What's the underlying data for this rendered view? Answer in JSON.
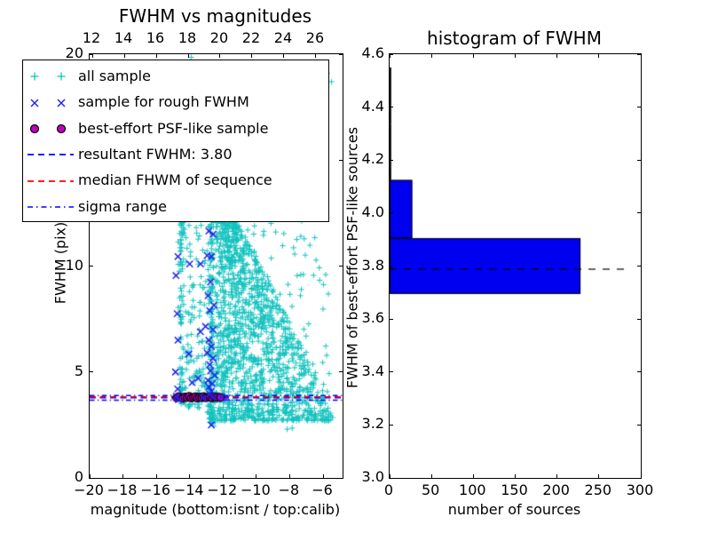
{
  "colors": {
    "cyan_marker": "#12C2BE",
    "blue_marker": "#2222EE",
    "blue_line": "#0000FF",
    "red_line": "#FF0000",
    "magenta_marker": "#BF00BF",
    "bar_fill": "#0000F0",
    "black": "#000000",
    "background": "#FFFFFF"
  },
  "legend": {
    "entries": [
      {
        "label": "all sample",
        "symbol": "plus-plus",
        "color": "#12C2BE"
      },
      {
        "label": "sample for rough FWHM",
        "symbol": "x-x",
        "color": "#2222EE"
      },
      {
        "label": "best-effort PSF-like sample",
        "symbol": "circle-circle",
        "color": "#BF00BF"
      },
      {
        "label": "resultant FWHM: 3.80",
        "symbol": "dashed-line",
        "color": "#0000FF"
      },
      {
        "label": "median FHWM of sequence",
        "symbol": "dashed-line",
        "color": "#FF0000"
      },
      {
        "label": "sigma range",
        "symbol": "dashdot-line",
        "color": "#0000FF"
      }
    ]
  },
  "chart_data": [
    {
      "id": "fwhm_vs_magnitudes",
      "type": "scatter",
      "title": "FWHM vs magnitudes",
      "xlabel": "magnitude (bottom:isnt / top:calib)",
      "ylabel": "FWHM (pix)",
      "xlim_bottom": [
        -20,
        -4.83
      ],
      "xlim_top": [
        11.83,
        27.67
      ],
      "ylim": [
        0,
        20
      ],
      "xticks_bottom": {
        "values": [
          -20,
          -18,
          -16,
          -14,
          -12,
          -10,
          -8,
          -6
        ],
        "labels": [
          "−20",
          "−18",
          "−16",
          "−14",
          "−12",
          "−10",
          "−8",
          "−6"
        ]
      },
      "xticks_top": {
        "values": [
          12,
          14,
          16,
          18,
          20,
          22,
          24,
          26
        ],
        "labels": [
          "12",
          "14",
          "16",
          "18",
          "20",
          "22",
          "24",
          "26"
        ]
      },
      "yticks": {
        "values": [
          0,
          5,
          10,
          15,
          20
        ],
        "labels": [
          "0",
          "5",
          "10",
          "15",
          "20"
        ]
      },
      "series": [
        {
          "name": "all sample",
          "marker": "+",
          "color": "#12C2BE",
          "clusters": [
            {
              "kind": "stripe",
              "x_center": -14.5,
              "x_spread": 0.16,
              "y_min": 3.5,
              "y_max": 12.4,
              "y_bias": 1.2,
              "count": 90
            },
            {
              "kind": "stripe",
              "x_center": -12.7,
              "x_spread": 0.2,
              "y_min": 2.6,
              "y_max": 13.2,
              "y_bias": 1.25,
              "count": 180
            },
            {
              "kind": "uniform",
              "x_min": -14.35,
              "x_max": -12.95,
              "y_min": 3.3,
              "y_max": 12.0,
              "y_bias": 1.5,
              "count": 110
            },
            {
              "kind": "wedge",
              "x_left": -12.45,
              "x_span_max": 7.1,
              "y_min": 2.7,
              "y_max": 13.3,
              "y_bias": 1.5,
              "top_falloff": 0.8,
              "count": 1400
            },
            {
              "kind": "uniform",
              "x_min": -12.1,
              "x_max": -5.6,
              "y_min": 4.0,
              "y_max": 12.5,
              "y_bias": 1.0,
              "count": 130
            }
          ],
          "extra_points": [
            [
              -13.9,
              19.85
            ],
            [
              -14.4,
              19.2
            ],
            [
              -9.9,
              19.35
            ],
            [
              -10.15,
              19.05
            ],
            [
              -5.75,
              19.1
            ],
            [
              -5.5,
              18.7
            ],
            [
              -5.95,
              18.45
            ],
            [
              -12.55,
              2.45
            ],
            [
              -8.15,
              2.3
            ],
            [
              -7.85,
              2.35
            ],
            [
              -6.55,
              2.9
            ],
            [
              -9.6,
              2.75
            ]
          ]
        },
        {
          "name": "sample for rough FWHM",
          "marker": "x",
          "color": "#2222EE",
          "points": [
            [
              -14.7,
              10.45
            ],
            [
              -14.82,
              9.55
            ],
            [
              -14.75,
              7.75
            ],
            [
              -14.7,
              6.5
            ],
            [
              -14.85,
              5.0
            ],
            [
              -14.72,
              4.2
            ],
            [
              -14.8,
              3.85
            ],
            [
              -14.68,
              3.7
            ],
            [
              -14.0,
              10.1
            ],
            [
              -13.35,
              10.1
            ],
            [
              -14.05,
              5.85
            ],
            [
              -13.85,
              4.5
            ],
            [
              -13.35,
              6.9
            ],
            [
              -13.5,
              4.7
            ],
            [
              -13.2,
              3.78
            ],
            [
              -12.85,
              11.65
            ],
            [
              -12.6,
              11.5
            ],
            [
              -12.95,
              10.5
            ],
            [
              -12.7,
              10.45
            ],
            [
              -12.75,
              9.25
            ],
            [
              -12.9,
              8.6
            ],
            [
              -12.55,
              8.15
            ],
            [
              -12.8,
              7.9
            ],
            [
              -13.05,
              7.15
            ],
            [
              -12.6,
              7.0
            ],
            [
              -12.85,
              6.5
            ],
            [
              -12.7,
              6.2
            ],
            [
              -12.95,
              5.9
            ],
            [
              -12.6,
              5.65
            ],
            [
              -12.8,
              5.35
            ],
            [
              -12.75,
              5.05
            ],
            [
              -12.5,
              4.85
            ],
            [
              -12.9,
              4.6
            ],
            [
              -12.65,
              4.45
            ],
            [
              -12.85,
              4.3
            ],
            [
              -12.7,
              4.1
            ],
            [
              -12.8,
              3.95
            ],
            [
              -12.6,
              3.8
            ],
            [
              -12.7,
              2.5
            ],
            [
              -12.1,
              3.82
            ],
            [
              -11.75,
              3.78
            ]
          ]
        },
        {
          "name": "best-effort PSF-like sample",
          "marker": "o",
          "color": "#BF00BF",
          "points": [
            [
              -14.78,
              3.78
            ],
            [
              -14.655,
              3.84
            ],
            [
              -14.53,
              3.8
            ],
            [
              -14.405,
              3.76
            ],
            [
              -14.28,
              3.82
            ],
            [
              -14.155,
              3.79
            ],
            [
              -14.03,
              3.85
            ],
            [
              -13.905,
              3.77
            ],
            [
              -13.78,
              3.8
            ],
            [
              -13.655,
              3.83
            ],
            [
              -13.53,
              3.76
            ],
            [
              -13.405,
              3.81
            ],
            [
              -13.28,
              3.79
            ],
            [
              -13.155,
              3.84
            ],
            [
              -13.03,
              3.78
            ],
            [
              -12.905,
              3.8
            ],
            [
              -12.78,
              3.82
            ],
            [
              -12.655,
              3.77
            ],
            [
              -12.53,
              3.83
            ],
            [
              -12.405,
              3.79
            ],
            [
              -12.28,
              3.81
            ],
            [
              -12.15,
              3.8
            ]
          ]
        }
      ],
      "lines": [
        {
          "name": "resultant FWHM: 3.80",
          "y": 3.8,
          "style": "dashed",
          "color": "#0000FF"
        },
        {
          "name": "median FHWM of sequence",
          "y": 3.85,
          "style": "dashed",
          "color": "#FF0000"
        },
        {
          "name": "sigma range upper",
          "y": 3.91,
          "style": "dashdot",
          "color": "#0000FF"
        },
        {
          "name": "sigma range lower",
          "y": 3.69,
          "style": "dashdot",
          "color": "#0000FF"
        }
      ]
    },
    {
      "id": "fwhm_histogram",
      "type": "bar",
      "orientation": "horizontal",
      "title": "histogram of FWHM",
      "xlabel": "number of sources",
      "ylabel": "FWHM of best-effort PSF-like sources",
      "xlim": [
        0,
        300
      ],
      "ylim": [
        3.0,
        4.6
      ],
      "xticks": {
        "values": [
          0,
          50,
          100,
          150,
          200,
          250,
          300
        ],
        "labels": [
          "0",
          "50",
          "100",
          "150",
          "200",
          "250",
          "300"
        ]
      },
      "yticks": {
        "values": [
          3.0,
          3.2,
          3.4,
          3.6,
          3.8,
          4.0,
          4.2,
          4.4,
          4.6
        ],
        "labels": [
          "3.0",
          "3.2",
          "3.4",
          "3.6",
          "3.8",
          "4.0",
          "4.2",
          "4.4",
          "4.6"
        ]
      },
      "bars": [
        {
          "from": 3.695,
          "to": 3.905,
          "count": 228
        },
        {
          "from": 3.905,
          "to": 4.125,
          "count": 27
        },
        {
          "from": 4.125,
          "to": 4.3375,
          "count": 1
        },
        {
          "from": 4.3375,
          "to": 4.55,
          "count": 1
        }
      ],
      "bar_fill": "#0000F0",
      "median_line": {
        "y": 3.79,
        "x_from": 0,
        "x_to": 280,
        "style": "dashed",
        "color": "#000000"
      }
    }
  ]
}
